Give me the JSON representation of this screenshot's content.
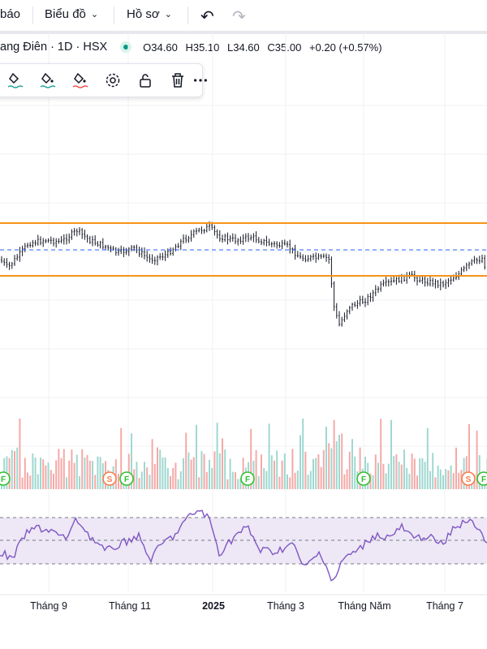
{
  "toolbar": {
    "alerts_label": "báo",
    "chart_menu_label": "Biểu đồ",
    "profile_menu_label": "Hồ sơ",
    "undo_icon": "undo-icon",
    "redo_icon": "redo-icon"
  },
  "legend": {
    "symbol": "ang Điên · 1D · HSX",
    "status_color": "#089981",
    "open": "O34.60",
    "high": "H35.10",
    "low": "L34.60",
    "close": "C35.00",
    "change": "+0.20 (+0.57%)"
  },
  "drawing_toolbar": {
    "tools": [
      "line-color-icon",
      "fill-color-icon",
      "text-color-icon",
      "settings-icon",
      "lock-icon",
      "delete-icon",
      "more-icon"
    ]
  },
  "colors": {
    "up": "#26a69a",
    "down": "#ef5350",
    "level_line": "#f7931a",
    "dashed_line": "#2962ff",
    "rsi_line": "#7e57c2",
    "rsi_band": "#ede7f6"
  },
  "chart_data": {
    "type": "candlestick",
    "time_axis_labels": [
      "Tháng 9",
      "Tháng 11",
      "2025",
      "Tháng 3",
      "Tháng Năm",
      "Tháng 7"
    ],
    "time_axis_bold": "2025",
    "price_levels": {
      "upper_solid_line": "resistance",
      "lower_solid_line": "support",
      "dashed_line": "mid"
    },
    "event_markers": [
      {
        "label": "F",
        "type": "financial"
      },
      {
        "label": "S",
        "type": "split"
      },
      {
        "label": "F",
        "type": "financial"
      },
      {
        "label": "F",
        "type": "financial"
      },
      {
        "label": "F",
        "type": "financial"
      },
      {
        "label": "S",
        "type": "split"
      },
      {
        "label": "F",
        "type": "financial"
      }
    ],
    "panels": [
      "price",
      "volume",
      "rsi"
    ]
  }
}
